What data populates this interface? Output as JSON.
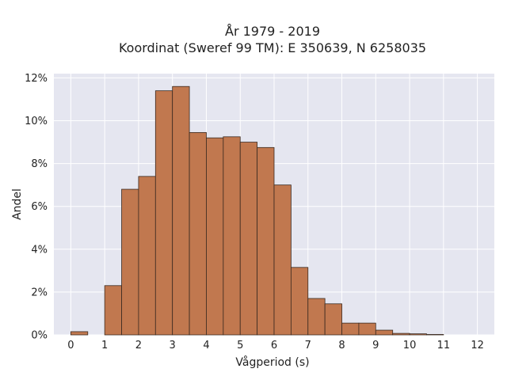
{
  "chart_data": {
    "type": "bar",
    "title_line1": "År 1979 - 2019",
    "title_line2": "Koordinat (Sweref 99 TM): E 350639, N 6258035",
    "xlabel": "Vågperiod (s)",
    "ylabel": "Andel",
    "bin_width": 0.5,
    "bins": [
      {
        "x0": 0.0,
        "value": 0.15
      },
      {
        "x0": 0.5,
        "value": 0.0
      },
      {
        "x0": 1.0,
        "value": 2.3
      },
      {
        "x0": 1.5,
        "value": 6.8
      },
      {
        "x0": 2.0,
        "value": 7.4
      },
      {
        "x0": 2.5,
        "value": 11.4
      },
      {
        "x0": 3.0,
        "value": 11.6
      },
      {
        "x0": 3.5,
        "value": 9.45
      },
      {
        "x0": 4.0,
        "value": 9.2
      },
      {
        "x0": 4.5,
        "value": 9.25
      },
      {
        "x0": 5.0,
        "value": 9.0
      },
      {
        "x0": 5.5,
        "value": 8.75
      },
      {
        "x0": 6.0,
        "value": 7.0
      },
      {
        "x0": 6.5,
        "value": 3.15
      },
      {
        "x0": 7.0,
        "value": 1.7
      },
      {
        "x0": 7.5,
        "value": 1.45
      },
      {
        "x0": 8.0,
        "value": 0.55
      },
      {
        "x0": 8.5,
        "value": 0.55
      },
      {
        "x0": 9.0,
        "value": 0.22
      },
      {
        "x0": 9.5,
        "value": 0.07
      },
      {
        "x0": 10.0,
        "value": 0.05
      },
      {
        "x0": 10.5,
        "value": 0.02
      }
    ],
    "xlim": [
      -0.5,
      12.5
    ],
    "ylim": [
      0,
      12.2
    ],
    "x_ticks": [
      "0",
      "1",
      "2",
      "3",
      "4",
      "5",
      "6",
      "7",
      "8",
      "9",
      "10",
      "11",
      "12"
    ],
    "y_ticks": [
      "0%",
      "2%",
      "4%",
      "6%",
      "8%",
      "10%",
      "12%"
    ],
    "y_tick_values": [
      0,
      2,
      4,
      6,
      8,
      10,
      12
    ],
    "grid": true,
    "colors": {
      "bar_fill": "#c1784f",
      "bar_stroke": "#3a2a20",
      "plot_bg": "#e5e6f0",
      "grid": "#ffffff"
    }
  }
}
